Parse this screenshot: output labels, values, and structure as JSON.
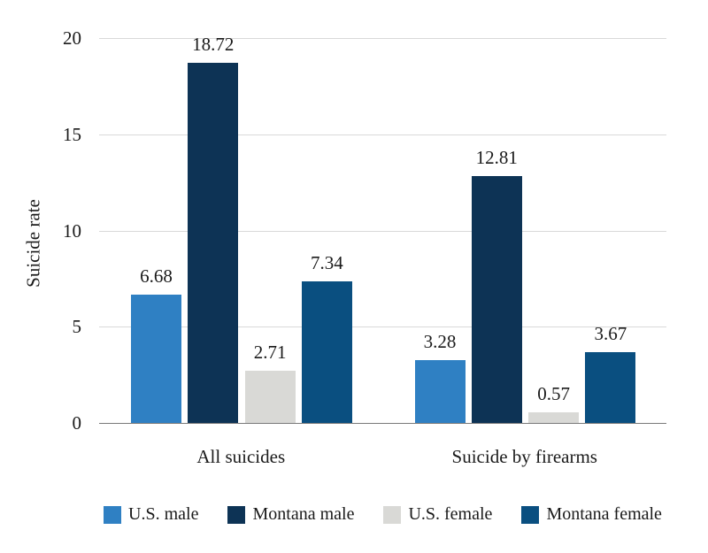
{
  "chart_data": {
    "type": "bar",
    "title": "",
    "xlabel": "",
    "ylabel": "Suicide rate",
    "categories": [
      "All suicides",
      "Suicide by firearms"
    ],
    "series": [
      {
        "name": "U.S. male",
        "color": "#2f80c3",
        "values": [
          6.68,
          3.28
        ]
      },
      {
        "name": "Montana male",
        "color": "#0d3355",
        "values": [
          18.72,
          12.81
        ]
      },
      {
        "name": "U.S. female",
        "color": "#d9d9d6",
        "values": [
          2.71,
          0.57
        ]
      },
      {
        "name": "Montana female",
        "color": "#0a4f80",
        "values": [
          7.34,
          3.67
        ]
      }
    ],
    "ylim": [
      0,
      20
    ],
    "yticks": [
      0,
      5,
      10,
      15,
      20
    ],
    "grid": true,
    "value_labels": true,
    "legend_position": "bottom"
  },
  "colors": {
    "background": "#ffffff",
    "gridline": "#d9d9d9",
    "axis_line": "#7a7a7a",
    "text": "#1a1a1a"
  }
}
